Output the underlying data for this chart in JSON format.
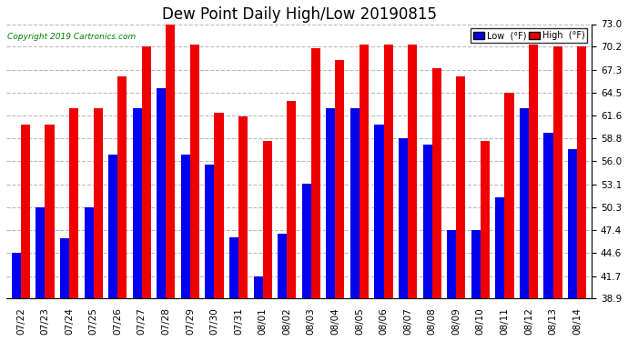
{
  "title": "Dew Point Daily High/Low 20190815",
  "copyright": "Copyright 2019 Cartronics.com",
  "dates": [
    "07/22",
    "07/23",
    "07/24",
    "07/25",
    "07/26",
    "07/27",
    "07/28",
    "07/29",
    "07/30",
    "07/31",
    "08/01",
    "08/02",
    "08/03",
    "08/04",
    "08/05",
    "08/06",
    "08/07",
    "08/08",
    "08/09",
    "08/10",
    "08/11",
    "08/12",
    "08/13",
    "08/14"
  ],
  "low": [
    44.6,
    50.3,
    46.4,
    50.3,
    56.8,
    62.5,
    65.0,
    56.8,
    55.5,
    46.5,
    41.7,
    47.0,
    53.2,
    62.5,
    62.5,
    60.5,
    58.8,
    58.0,
    47.4,
    47.4,
    51.5,
    62.5,
    59.5,
    57.5
  ],
  "high": [
    60.5,
    60.5,
    62.5,
    62.5,
    66.5,
    70.2,
    73.0,
    70.5,
    62.0,
    61.5,
    58.5,
    63.5,
    70.0,
    68.5,
    70.5,
    70.5,
    70.5,
    67.5,
    66.5,
    58.5,
    64.5,
    70.5,
    70.2,
    70.2
  ],
  "ymin": 38.9,
  "ylim": [
    38.9,
    73.0
  ],
  "yticks": [
    38.9,
    41.7,
    44.6,
    47.4,
    50.3,
    53.1,
    56.0,
    58.8,
    61.6,
    64.5,
    67.3,
    70.2,
    73.0
  ],
  "bar_width": 0.38,
  "low_color": "#0000ee",
  "high_color": "#ee0000",
  "bg_color": "#ffffff",
  "grid_color": "#bbbbbb",
  "title_fontsize": 12,
  "tick_fontsize": 7.5,
  "legend_low_label": "Low  (°F)",
  "legend_high_label": "High  (°F)",
  "legend_low_bg": "#0000ee",
  "legend_high_bg": "#ee0000"
}
